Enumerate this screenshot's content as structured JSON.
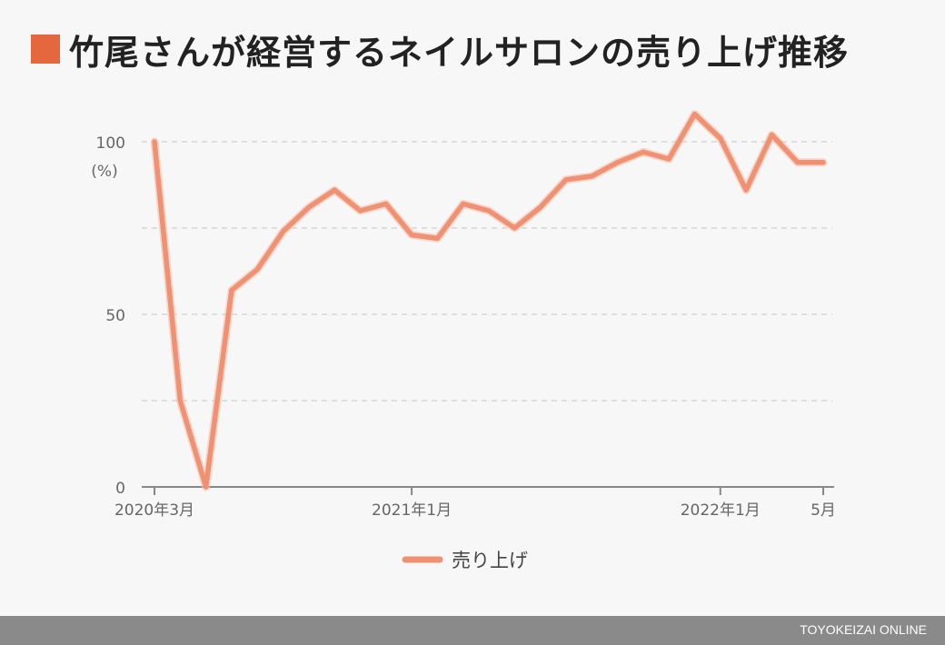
{
  "header": {
    "title": "竹尾さんが経営するネイルサロンの売り上げ推移"
  },
  "colors": {
    "accent": "#e5673e",
    "line": "#ef9172",
    "footer": "#8a8a8a"
  },
  "chart_data": {
    "type": "line",
    "title": "竹尾さんが経営するネイルサロンの売り上げ推移",
    "xlabel": "",
    "ylabel": "(%)",
    "ylim": [
      0,
      100
    ],
    "yticks": [
      0,
      50,
      100
    ],
    "grid": true,
    "legend_position": "bottom",
    "x_tick_labels": [
      {
        "label": "2020年3月",
        "index": 0
      },
      {
        "label": "2021年1月",
        "index": 10
      },
      {
        "label": "2022年1月",
        "index": 22
      },
      {
        "label": "5月",
        "index": 26
      }
    ],
    "x": [
      "2020-03",
      "2020-04",
      "2020-05",
      "2020-06",
      "2020-07",
      "2020-08",
      "2020-09",
      "2020-10",
      "2020-11",
      "2020-12",
      "2021-01",
      "2021-02",
      "2021-03",
      "2021-04",
      "2021-05",
      "2021-06",
      "2021-07",
      "2021-08",
      "2021-09",
      "2021-10",
      "2021-11",
      "2021-12",
      "2022-01",
      "2022-02",
      "2022-03",
      "2022-04",
      "2022-05"
    ],
    "series": [
      {
        "name": "売り上げ",
        "values": [
          100,
          25,
          0,
          57,
          63,
          74,
          81,
          86,
          80,
          82,
          73,
          72,
          82,
          80,
          75,
          81,
          89,
          90,
          94,
          97,
          95,
          108,
          101,
          86,
          102,
          94,
          94
        ]
      }
    ]
  },
  "footer": {
    "brand": "TOYOKEIZAI ONLINE"
  }
}
